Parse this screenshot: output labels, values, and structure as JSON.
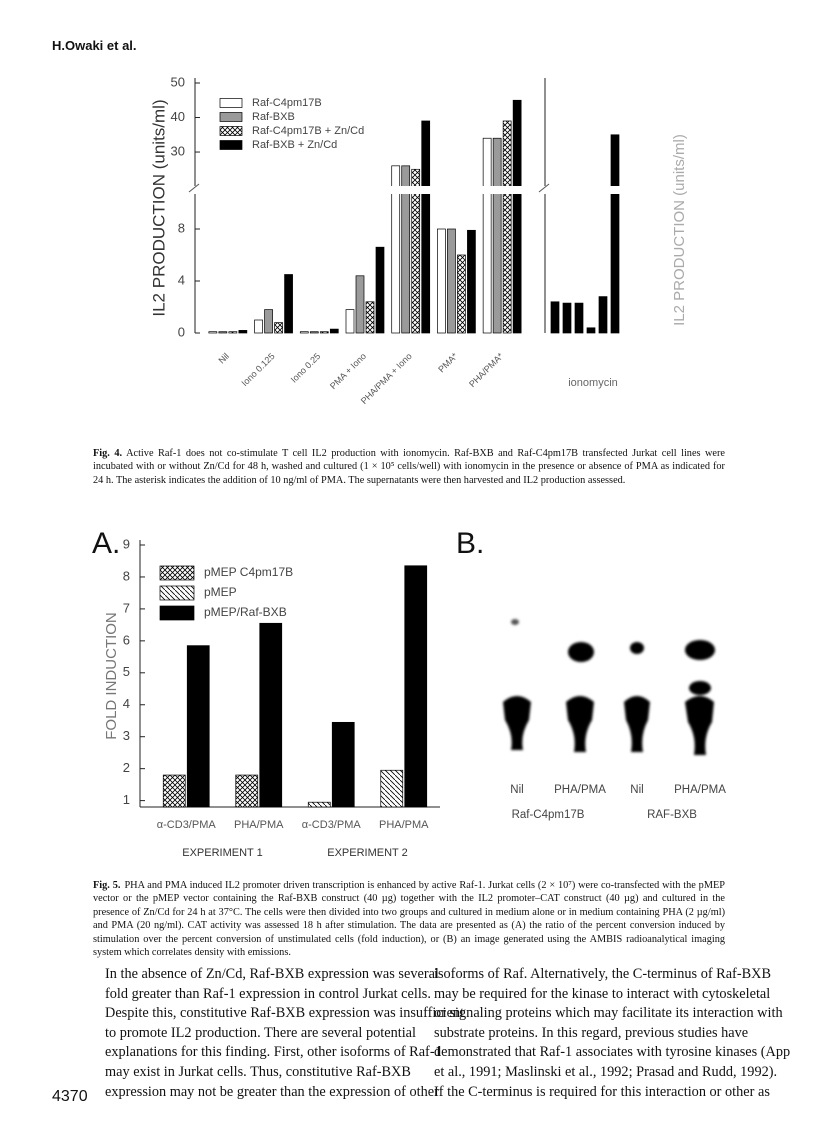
{
  "header": {
    "running_head": "H.Owaki et al."
  },
  "chart_data": [
    {
      "type": "bar",
      "y_label": "IL2 PRODUCTION (units/ml)",
      "categories": [
        "Nil",
        "Iono 0.125",
        "Iono 0.25",
        "PMA + Iono",
        "PHA/PMA + Iono",
        "PMA*",
        "PHA/PMA*"
      ],
      "series": [
        {
          "name": "Raf-C4pm17B",
          "color": "#ffffff",
          "values": [
            0.1,
            1.0,
            0.1,
            1.8,
            26,
            8.0,
            34
          ]
        },
        {
          "name": "Raf-BXB",
          "color": "#9a9a9a",
          "values": [
            0.1,
            1.8,
            0.1,
            4.4,
            26,
            8.0,
            34
          ]
        },
        {
          "name": "Raf-C4pm17B + Zn/Cd",
          "color": "#ffffff",
          "pattern": "crosshatch",
          "values": [
            0.1,
            0.8,
            0.1,
            2.4,
            25,
            6.0,
            39
          ]
        },
        {
          "name": "Raf-BXB + Zn/Cd",
          "color": "#000000",
          "values": [
            0.2,
            4.5,
            0.3,
            6.6,
            39,
            7.9,
            45
          ]
        }
      ],
      "ylim": [
        0,
        50
      ],
      "ybreak": [
        11,
        19
      ],
      "yticks": [
        0,
        4,
        8,
        30,
        40,
        50
      ]
    },
    {
      "type": "bar",
      "x_label": "ionomycin",
      "y_label": "IL2 PRODUCTION (units/ml)",
      "values": [
        2.4,
        2.3,
        2.3,
        0.4,
        2.8,
        35
      ],
      "color": "#000000",
      "ylim": [
        0,
        50
      ],
      "ybreak": [
        11,
        19
      ]
    },
    {
      "type": "bar",
      "panel": "A.",
      "y_label": "FOLD INDUCTION",
      "categories": [
        "α-CD3/PMA",
        "PHA/PMA",
        "α-CD3/PMA",
        "PHA/PMA"
      ],
      "groups": [
        "EXPERIMENT 1",
        "EXPERIMENT 2"
      ],
      "series": [
        {
          "name": "pMEP C4pm17B",
          "color": "#ffffff",
          "pattern": "crosshatch",
          "values": [
            1.8,
            1.8,
            null,
            null
          ]
        },
        {
          "name": "pMEP",
          "color": "#ffffff",
          "pattern": "diagonal",
          "values": [
            null,
            null,
            0.95,
            1.95
          ]
        },
        {
          "name": "pMEP/Raf-BXB",
          "color": "#000000",
          "values": [
            5.85,
            6.55,
            3.45,
            8.35
          ]
        }
      ],
      "ylim": [
        0.8,
        9
      ],
      "yticks": [
        1,
        2,
        3,
        4,
        5,
        6,
        7,
        8,
        9
      ]
    }
  ],
  "figure5b": {
    "panel": "B.",
    "lanes": [
      "Nil",
      "PHA/PMA",
      "Nil",
      "PHA/PMA"
    ],
    "groups": [
      "Raf-C4pm17B",
      "RAF-BXB"
    ]
  },
  "captions": [
    {
      "label": "Fig. 4.",
      "text": "Active Raf-1 does not co-stimulate T cell IL2 production with ionomycin. Raf-BXB and Raf-C4pm17B transfected Jurkat cell lines were incubated with or without Zn/Cd for 48 h, washed and cultured (1 × 10⁵ cells/well) with ionomycin in the presence or absence of PMA as indicated for 24 h. The asterisk indicates the addition of 10 ng/ml of PMA. The supernatants were then harvested and IL2 production assessed."
    },
    {
      "label": "Fig. 5.",
      "text": "PHA and PMA induced IL2 promoter driven transcription is enhanced by active Raf-1. Jurkat cells (2 × 10⁷) were co-transfected with the pMEP vector or the pMEP vector containing the Raf-BXB construct (40 µg) together with the IL2 promoter–CAT construct (40 µg) and cultured in the presence of Zn/Cd for 24 h at 37°C. The cells were then divided into two groups and cultured in medium alone or in medium containing PHA (2 µg/ml) and PMA (20 ng/ml). CAT activity was assessed 18 h after stimulation. The data are presented as (A) the ratio of the percent conversion induced by stimulation over the percent conversion of unstimulated cells (fold induction), or (B) an image generated using the AMBIS radioanalytical imaging system which correlates density with emissions."
    }
  ],
  "body": {
    "left": [
      "In the absence of Zn/Cd, Raf-BXB expression was several",
      "fold greater than Raf-1 expression in control Jurkat cells.",
      "Despite this, constitutive Raf-BXB expression was insufficient",
      "to promote IL2 production. There are several potential",
      "explanations for this finding. First, other isoforms of Raf-1",
      "may exist in Jurkat cells. Thus, constitutive Raf-BXB",
      "expression may not be greater than the expression of other"
    ],
    "right": [
      "isoforms of Raf. Alternatively, the C-terminus of Raf-BXB",
      "may be required for the kinase to interact with cytoskeletal",
      "or signaling proteins which may facilitate its interaction with",
      "substrate proteins. In this regard, previous studies have",
      "demonstrated that Raf-1 associates with tyrosine kinases (App",
      "et al., 1991; Maslinski et al., 1992; Prasad and Rudd, 1992).",
      "If the C-terminus is required for this interaction or other as"
    ]
  },
  "footer": {
    "page_number": "4370"
  }
}
